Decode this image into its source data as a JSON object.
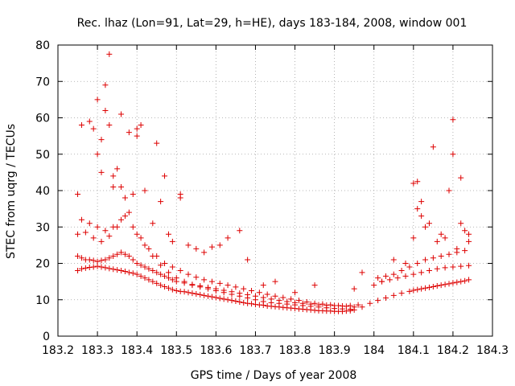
{
  "chart_data": {
    "type": "scatter",
    "title": "Rec. lhaz (Lon=91, Lat=29, h=HE), days 183-184, 2008, window 001",
    "xlabel": "GPS time / Days of year 2008",
    "ylabel": "STEC from uqrg / TECUs",
    "xlim": [
      183.2,
      184.3
    ],
    "ylim": [
      0,
      80
    ],
    "xticks": [
      183.2,
      183.3,
      183.4,
      183.5,
      183.6,
      183.7,
      183.8,
      183.9,
      184,
      184.1,
      184.2,
      184.3
    ],
    "xtick_labels": [
      "183.2",
      "183.3",
      "183.4",
      "183.5",
      "183.6",
      "183.7",
      "183.8",
      "183.9",
      "184",
      "184.1",
      "184.2",
      "184.3"
    ],
    "yticks": [
      0,
      10,
      20,
      30,
      40,
      50,
      60,
      70,
      80
    ],
    "ytick_labels": [
      "0",
      "10",
      "20",
      "30",
      "40",
      "50",
      "60",
      "70",
      "80"
    ],
    "grid": true,
    "marker": "+",
    "color": "#dd0000",
    "series": [
      {
        "x": [
          183.25,
          183.26,
          183.27,
          183.28,
          183.29,
          183.3,
          183.31,
          183.32,
          183.33,
          183.34,
          183.35,
          183.36,
          183.37,
          183.38,
          183.39,
          183.4,
          183.41,
          183.42,
          183.43,
          183.44,
          183.45,
          183.46,
          183.47,
          183.48,
          183.49,
          183.5,
          183.51,
          183.52,
          183.53,
          183.54,
          183.55,
          183.56,
          183.57,
          183.58,
          183.59,
          183.6,
          183.61,
          183.62,
          183.63,
          183.64,
          183.65,
          183.66,
          183.67,
          183.68,
          183.69,
          183.7,
          183.71,
          183.72,
          183.73,
          183.74,
          183.75,
          183.76,
          183.77,
          183.78,
          183.79,
          183.8,
          183.81,
          183.82,
          183.83,
          183.84,
          183.85,
          183.86,
          183.87,
          183.88,
          183.89,
          183.9,
          183.91,
          183.92,
          183.93,
          183.94,
          183.95,
          183.97,
          183.99,
          184.01,
          184.03,
          184.05,
          184.07,
          184.09,
          184.1,
          184.11,
          184.12,
          184.13,
          184.14,
          184.15,
          184.16,
          184.17,
          184.18,
          184.19,
          184.2,
          184.21,
          184.22,
          184.23,
          184.24
        ],
        "y": [
          18.0,
          18.5,
          18.7,
          18.9,
          19.0,
          19.2,
          19.0,
          18.8,
          18.6,
          18.4,
          18.2,
          18.0,
          17.8,
          17.5,
          17.3,
          17.0,
          16.5,
          16.0,
          15.5,
          15.0,
          14.5,
          14.0,
          13.6,
          13.2,
          12.8,
          12.5,
          12.3,
          12.2,
          12.0,
          11.8,
          11.6,
          11.4,
          11.2,
          11.0,
          10.8,
          10.6,
          10.4,
          10.2,
          10.0,
          9.8,
          9.6,
          9.4,
          9.2,
          9.0,
          8.9,
          8.7,
          8.6,
          8.5,
          8.3,
          8.2,
          8.1,
          8.0,
          7.9,
          7.8,
          7.7,
          7.6,
          7.5,
          7.4,
          7.3,
          7.2,
          7.1,
          7.0,
          7.0,
          6.9,
          6.9,
          6.8,
          6.8,
          6.8,
          6.9,
          7.0,
          7.2,
          8.0,
          9.0,
          9.8,
          10.5,
          11.2,
          11.8,
          12.3,
          12.6,
          12.8,
          13.0,
          13.2,
          13.4,
          13.6,
          13.8,
          14.0,
          14.2,
          14.4,
          14.6,
          14.8,
          15.0,
          15.2,
          15.5
        ]
      },
      {
        "x": [
          183.25,
          183.26,
          183.27,
          183.28,
          183.29,
          183.3,
          183.31,
          183.32,
          183.33,
          183.34,
          183.35,
          183.36,
          183.37,
          183.38,
          183.39,
          183.4,
          183.41,
          183.42,
          183.43,
          183.44,
          183.45,
          183.46,
          183.47,
          183.48,
          183.49,
          183.5,
          183.52,
          183.54,
          183.56,
          183.58,
          183.6,
          183.62,
          183.64,
          183.66,
          183.68,
          183.7,
          183.72,
          183.74,
          183.76,
          183.78,
          183.8,
          183.82,
          183.84,
          183.86,
          183.88,
          183.9,
          183.92,
          183.94,
          183.96,
          184.0,
          184.02,
          184.04,
          184.06,
          184.08,
          184.1,
          184.12,
          184.14,
          184.16,
          184.18,
          184.2,
          184.22,
          184.24
        ],
        "y": [
          22.0,
          21.5,
          21.0,
          21.0,
          20.8,
          20.5,
          20.8,
          21.0,
          21.5,
          22.0,
          22.5,
          23.0,
          22.5,
          22.0,
          21.0,
          20.0,
          19.5,
          19.0,
          18.5,
          18.0,
          17.5,
          17.0,
          16.5,
          16.0,
          15.5,
          15.0,
          14.6,
          14.2,
          13.8,
          13.4,
          13.0,
          12.6,
          12.2,
          11.8,
          11.4,
          11.0,
          10.6,
          10.2,
          9.8,
          9.5,
          9.2,
          9.0,
          8.8,
          8.6,
          8.5,
          8.4,
          8.3,
          8.4,
          8.6,
          14.0,
          15.0,
          15.5,
          16.0,
          16.5,
          17.0,
          17.5,
          18.0,
          18.5,
          18.8,
          19.0,
          19.2,
          19.4
        ]
      },
      {
        "x": [
          183.25,
          183.27,
          183.29,
          183.31,
          183.33,
          183.35,
          183.37,
          183.39,
          183.41,
          183.43,
          183.45,
          183.47,
          183.49,
          183.51,
          183.53,
          183.55,
          183.57,
          183.59,
          183.61,
          183.63,
          183.65,
          183.67,
          183.69,
          183.71,
          183.73,
          183.75,
          183.77,
          183.79,
          183.81,
          183.83,
          183.85,
          183.87,
          183.89,
          183.91,
          183.93,
          183.95,
          184.01,
          184.03,
          184.05,
          184.07,
          184.09,
          184.11,
          184.13,
          184.15,
          184.17,
          184.19,
          184.21,
          184.23
        ],
        "y": [
          28.0,
          28.5,
          27.0,
          26.0,
          27.5,
          30.0,
          33.0,
          30.0,
          27.0,
          24.0,
          22.0,
          20.0,
          19.0,
          18.0,
          17.0,
          16.2,
          15.5,
          15.0,
          14.5,
          14.0,
          13.5,
          13.0,
          12.5,
          12.0,
          11.5,
          11.0,
          10.6,
          10.2,
          9.8,
          9.4,
          9.0,
          8.8,
          8.6,
          8.4,
          8.2,
          8.0,
          16.0,
          16.5,
          17.0,
          18.0,
          19.0,
          20.0,
          21.0,
          21.5,
          22.0,
          22.5,
          23.0,
          23.5
        ]
      },
      {
        "x": [
          183.25,
          183.26,
          183.28,
          183.29,
          183.3,
          183.3,
          183.31,
          183.31,
          183.32,
          183.32,
          183.33,
          183.33,
          183.34,
          183.34,
          183.35,
          183.36,
          183.36,
          183.37,
          183.38,
          183.39,
          183.4,
          183.4,
          183.41,
          183.42,
          183.44,
          183.45,
          183.46,
          183.47,
          183.48,
          183.49,
          183.51,
          183.51,
          183.53,
          183.55,
          183.57,
          183.59,
          183.61,
          183.63,
          183.66,
          183.68,
          183.72,
          183.75,
          183.8,
          183.85,
          183.95,
          183.97,
          184.02,
          184.05,
          184.08,
          184.1,
          184.1,
          184.11,
          184.11,
          184.12,
          184.12,
          184.13,
          184.14,
          184.15,
          184.16,
          184.17,
          184.18,
          184.19,
          184.2,
          184.2,
          184.21,
          184.22,
          184.22,
          184.23,
          184.24,
          184.24
        ],
        "y": [
          39.0,
          58.0,
          59.0,
          57.0,
          65.0,
          50.0,
          54.0,
          45.0,
          69.0,
          62.0,
          77.5,
          58.0,
          44.0,
          41.0,
          46.0,
          61.0,
          41.0,
          38.0,
          56.0,
          39.0,
          55.0,
          57.0,
          58.0,
          40.0,
          31.0,
          53.0,
          37.0,
          44.0,
          28.0,
          26.0,
          38.0,
          39.0,
          25.0,
          24.0,
          23.0,
          24.5,
          25.0,
          27.0,
          29.0,
          21.0,
          14.0,
          15.0,
          12.0,
          14.0,
          13.0,
          17.5,
          15.0,
          21.0,
          20.0,
          27.0,
          42.0,
          35.0,
          42.5,
          33.0,
          37.0,
          30.0,
          31.0,
          52.0,
          26.0,
          28.0,
          27.0,
          40.0,
          50.0,
          59.5,
          24.0,
          43.5,
          31.0,
          29.0,
          28.0,
          26.0
        ]
      },
      {
        "x": [
          183.26,
          183.28,
          183.3,
          183.32,
          183.34,
          183.36,
          183.38,
          183.4,
          183.42,
          183.44,
          183.46,
          183.48,
          183.5,
          183.52,
          183.54,
          183.56,
          183.58,
          183.6,
          183.62,
          183.64,
          183.66,
          183.68,
          183.7,
          183.72,
          183.74,
          183.76,
          183.78,
          183.8,
          183.82,
          183.84,
          183.86,
          183.88,
          183.9,
          183.92,
          183.94
        ],
        "y": [
          32.0,
          31.0,
          30.0,
          29.0,
          30.0,
          32.0,
          34.0,
          28.0,
          25.0,
          22.0,
          19.5,
          17.5,
          16.0,
          15.0,
          14.0,
          13.5,
          13.0,
          12.5,
          12.0,
          11.5,
          11.0,
          10.5,
          10.0,
          9.5,
          9.2,
          9.0,
          8.8,
          8.6,
          8.4,
          8.2,
          8.0,
          7.8,
          7.6,
          7.5,
          7.4
        ]
      }
    ]
  }
}
